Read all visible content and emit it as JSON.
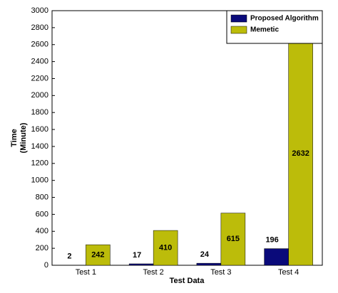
{
  "chart_data": {
    "type": "bar",
    "x_label": "Test Data",
    "y_label": [
      "Time",
      "(Minute)"
    ],
    "categories": [
      "Test 1",
      "Test 2",
      "Test 3",
      "Test 4"
    ],
    "series": [
      {
        "name": "Proposed Algorithm",
        "color": "#0a0a7a",
        "values": [
          2,
          17,
          24,
          196
        ]
      },
      {
        "name": "Memetic",
        "color": "#bcbc0a",
        "values": [
          242,
          410,
          615,
          2632
        ]
      }
    ],
    "ylim": [
      0,
      3000
    ],
    "yticks": [
      0,
      200,
      400,
      600,
      800,
      1000,
      1200,
      1400,
      1600,
      1800,
      2000,
      2200,
      2400,
      2600,
      2800,
      3000
    ],
    "grid": false,
    "legend": "upper right"
  }
}
